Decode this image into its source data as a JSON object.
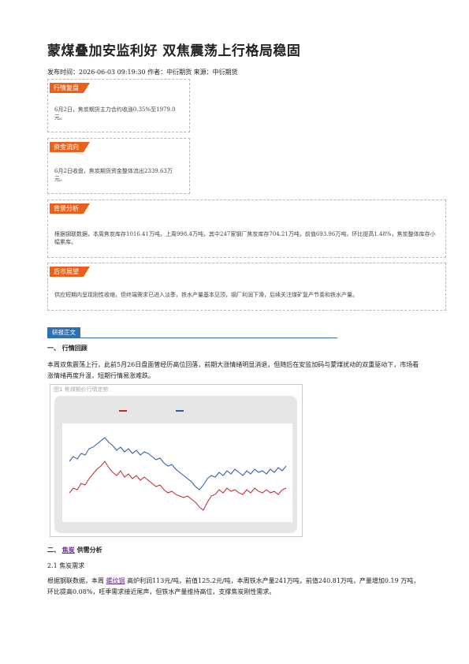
{
  "header": {
    "title": "蒙煤叠加安监利好 双焦震荡上行格局稳固",
    "meta": "发布时间：2026-06-03 09:19:30 作者：中衍期货 来源：中衍期货"
  },
  "boxes": [
    {
      "label": "行情复盘",
      "text": "6月2日，焦炭期货主力合约收涨0.35%至1979.0元。"
    },
    {
      "label": "资金流向",
      "text": "6月2日收盘，焦炭期货资金整体流出2339.63万元。"
    },
    {
      "label": "背景分析",
      "text": "根据钢联数据，本周焦炭库存1016.41万吨，上周998.4万吨，其中247家钢厂焦炭库存704.21万吨，前值693.96万吨，环比提高1.48%，焦炭整体库存小幅累库。"
    },
    {
      "label": "后市展望",
      "text": "供应短期内呈现刚性收缩，但终端需求已进入淡季，铁水产量基本见顶，钢厂利润下滑，后续关注煤矿复产节奏和铁水产量。"
    }
  ],
  "body": {
    "label": "研报正文",
    "section1": {
      "heading": "一、 行情回顾",
      "paragraph": "本周双焦震荡上行，此前5月26日盘面曾经历高位回落，前期大涨情绪明显消退，但随后在安监加码与蒙煤扰动的双重驱动下，市场看涨情绪再度升温，短期行情易涨难跌。",
      "figure_title": "图1 焦煤期价行情走势"
    },
    "section2": {
      "heading": [
        "二、 ",
        "焦炭",
        " 供需分析"
      ],
      "subheading": "2.1 焦炭需求",
      "paragraph": [
        "根据钢联数据，本周 ",
        "螺纹钢",
        " 高炉利润113元/吨，前值125.2元/吨，本周铁水产量241万吨，前值240.81万吨，产量增加0.19 万吨，环比提高0.08%，旺季需求接近尾声，但铁水产量维持高位，支撑焦炭刚性需求。"
      ]
    }
  }
}
